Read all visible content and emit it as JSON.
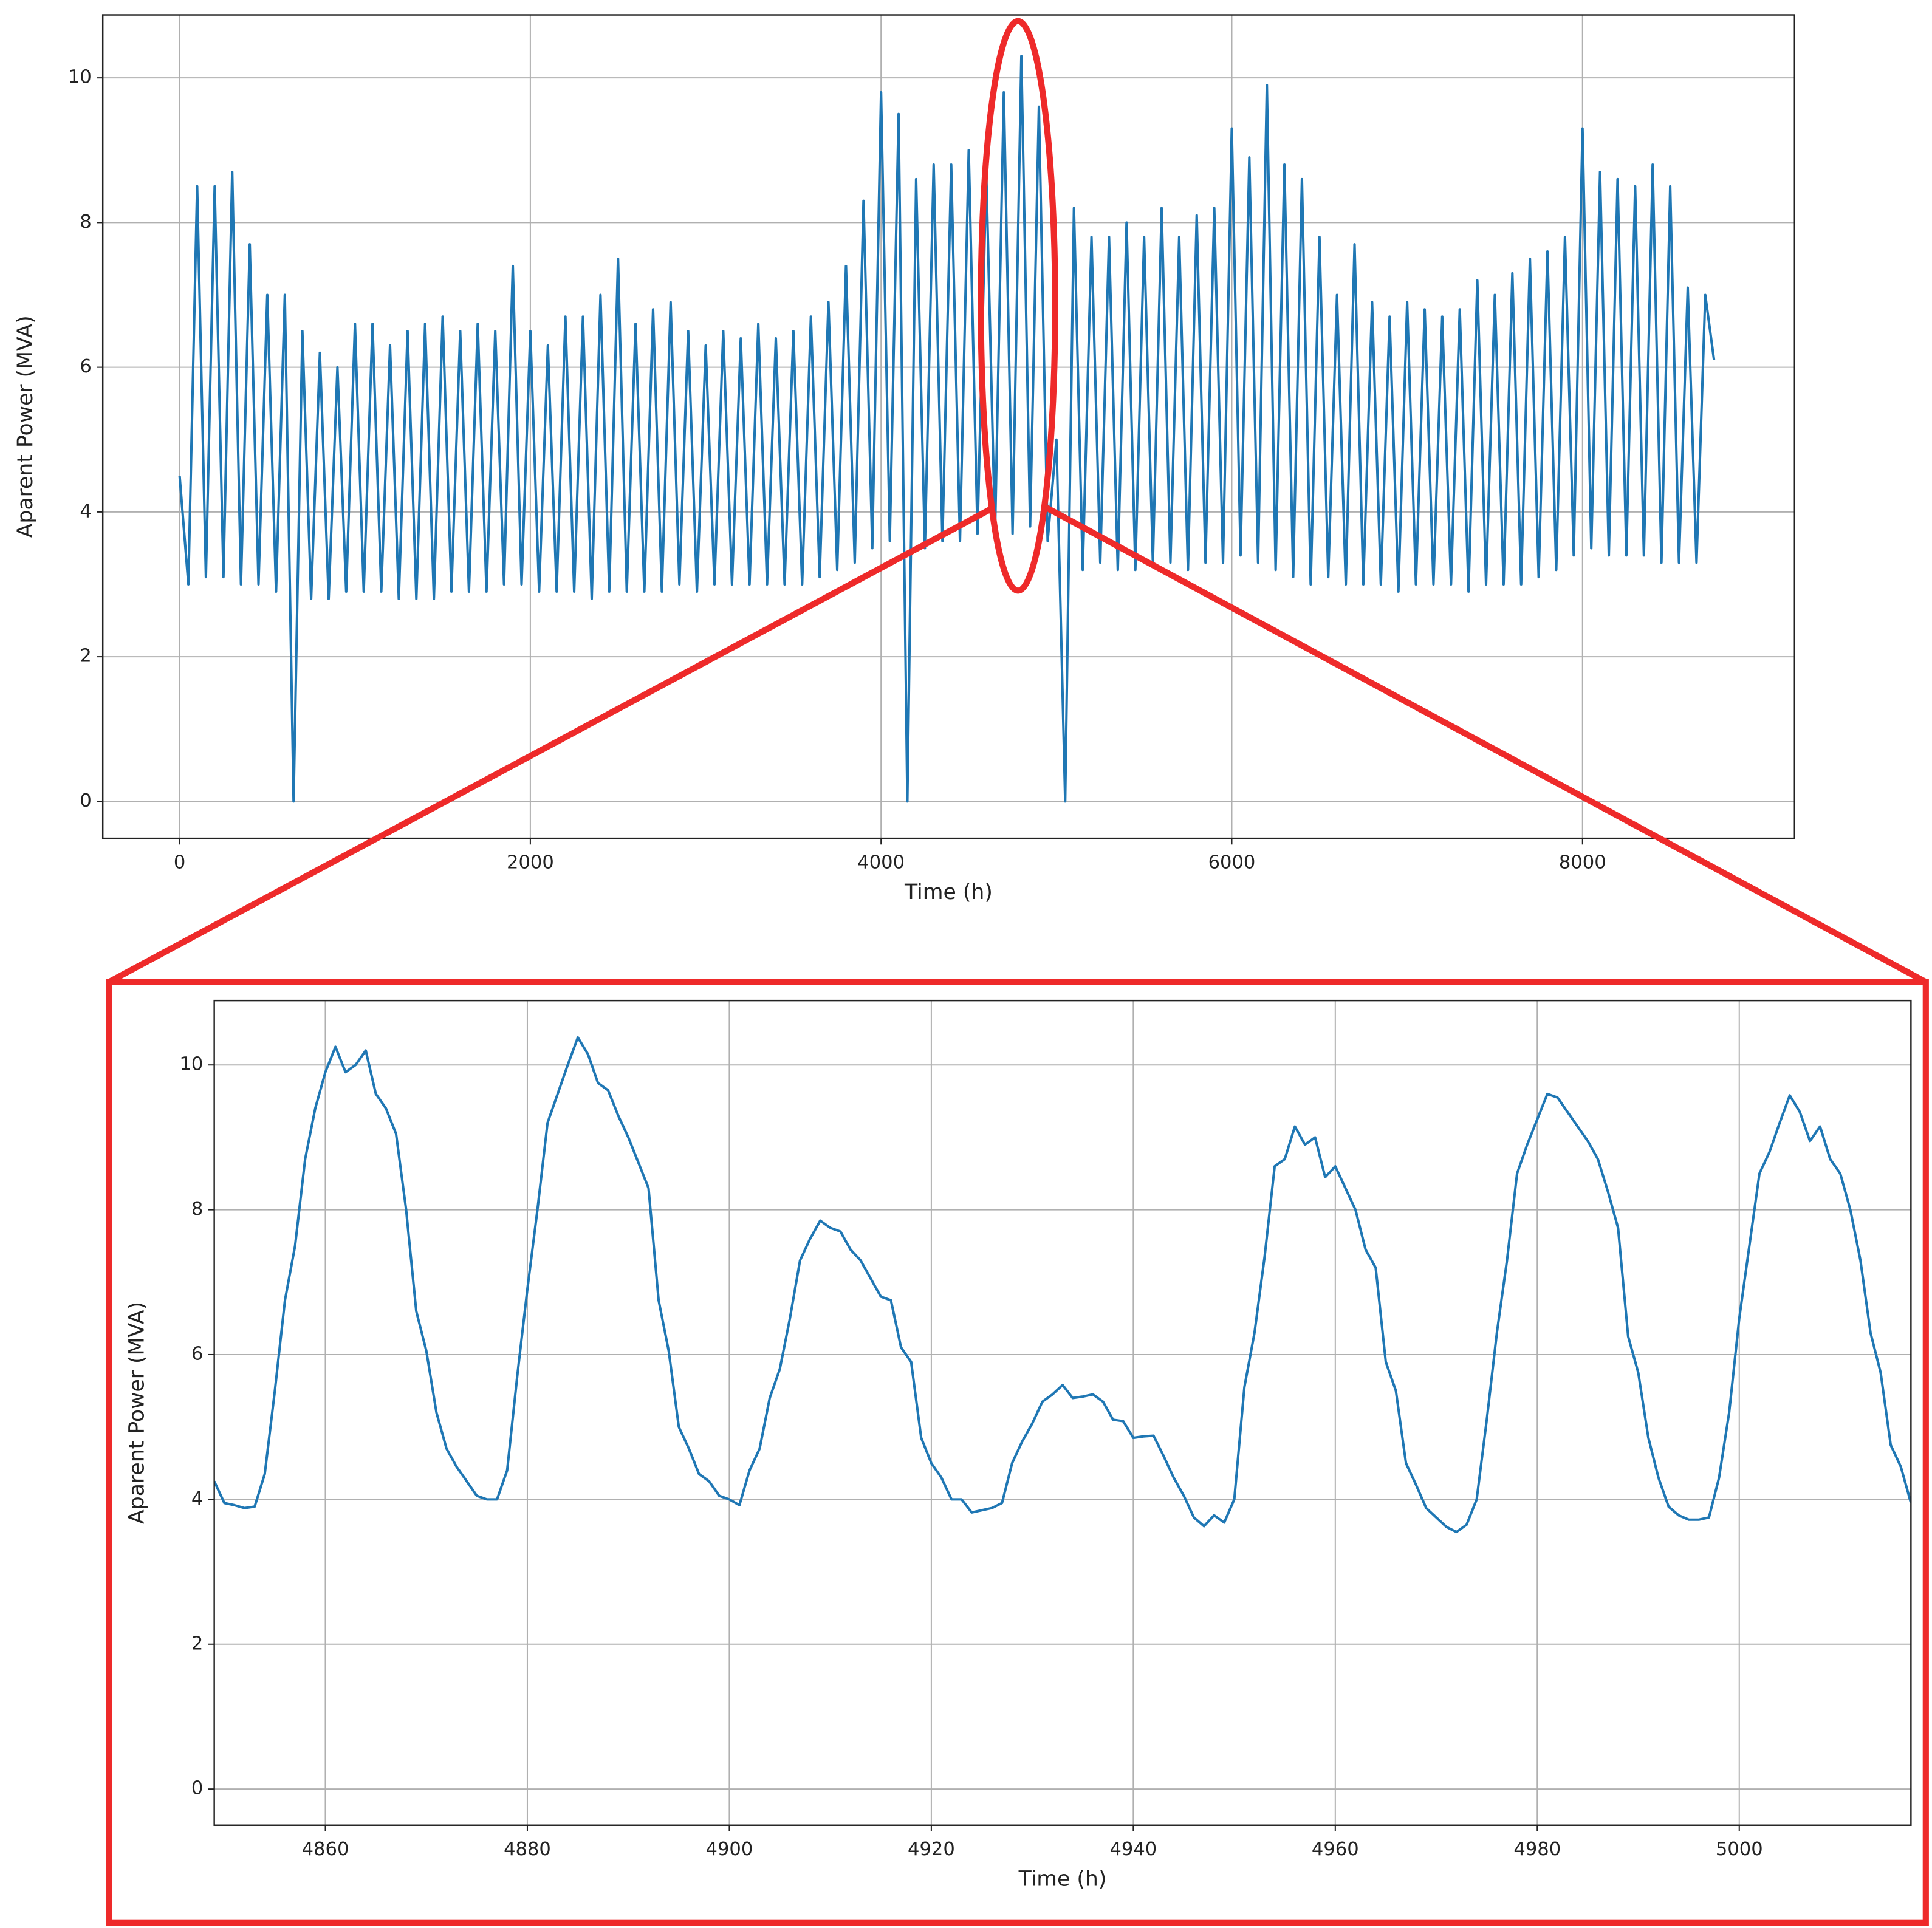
{
  "chart_data": [
    {
      "type": "line",
      "xlabel": "Time (h)",
      "ylabel": "Aparent Power (MVA)",
      "color": "#1f77b4",
      "xlim": [
        -438,
        9209
      ],
      "ylim": [
        -0.51,
        10.87
      ],
      "xticks": [
        0,
        2000,
        4000,
        6000,
        8000
      ],
      "yticks": [
        0,
        2,
        4,
        6,
        8,
        10
      ],
      "grid": true,
      "x": [
        0,
        50,
        100,
        150,
        200,
        250,
        300,
        350,
        400,
        450,
        500,
        550,
        600,
        650,
        700,
        750,
        800,
        850,
        900,
        950,
        1000,
        1050,
        1100,
        1150,
        1200,
        1250,
        1300,
        1350,
        1400,
        1450,
        1500,
        1550,
        1600,
        1650,
        1700,
        1750,
        1800,
        1850,
        1900,
        1950,
        2000,
        2050,
        2100,
        2150,
        2200,
        2250,
        2300,
        2350,
        2400,
        2450,
        2500,
        2550,
        2600,
        2650,
        2700,
        2750,
        2800,
        2850,
        2900,
        2950,
        3000,
        3050,
        3100,
        3150,
        3200,
        3250,
        3300,
        3350,
        3400,
        3450,
        3500,
        3550,
        3600,
        3650,
        3700,
        3750,
        3800,
        3850,
        3900,
        3950,
        4000,
        4050,
        4100,
        4150,
        4200,
        4250,
        4300,
        4350,
        4400,
        4450,
        4500,
        4550,
        4600,
        4650,
        4700,
        4750,
        4800,
        4850,
        4900,
        4950,
        5000,
        5050,
        5100,
        5150,
        5200,
        5250,
        5300,
        5350,
        5400,
        5450,
        5500,
        5550,
        5600,
        5650,
        5700,
        5750,
        5800,
        5850,
        5900,
        5950,
        6000,
        6050,
        6100,
        6150,
        6200,
        6250,
        6300,
        6350,
        6400,
        6450,
        6500,
        6550,
        6600,
        6650,
        6700,
        6750,
        6800,
        6850,
        6900,
        6950,
        7000,
        7050,
        7100,
        7150,
        7200,
        7250,
        7300,
        7350,
        7400,
        7450,
        7500,
        7550,
        7600,
        7650,
        7700,
        7750,
        7800,
        7850,
        7900,
        7950,
        8000,
        8050,
        8100,
        8150,
        8200,
        8250,
        8300,
        8350,
        8400,
        8450,
        8500,
        8550,
        8600,
        8650,
        8700,
        8750
      ],
      "values": [
        4.5,
        3.0,
        8.5,
        3.1,
        8.5,
        3.1,
        8.7,
        3.0,
        7.7,
        3.0,
        7.0,
        2.9,
        7.0,
        0,
        6.5,
        2.8,
        6.2,
        2.8,
        6.0,
        2.9,
        6.6,
        2.9,
        6.6,
        2.9,
        6.3,
        2.8,
        6.5,
        2.8,
        6.6,
        2.8,
        6.7,
        2.9,
        6.5,
        2.9,
        6.6,
        2.9,
        6.5,
        3.0,
        7.4,
        3.0,
        6.5,
        2.9,
        6.3,
        2.9,
        6.7,
        2.9,
        6.7,
        2.8,
        7.0,
        2.9,
        7.5,
        2.9,
        6.6,
        2.9,
        6.8,
        2.9,
        6.9,
        3.0,
        6.5,
        2.9,
        6.3,
        3.0,
        6.5,
        3.0,
        6.4,
        3.0,
        6.6,
        3.0,
        6.4,
        3.0,
        6.5,
        3.0,
        6.7,
        3.1,
        6.9,
        3.2,
        7.4,
        3.3,
        8.3,
        3.5,
        9.8,
        3.6,
        9.5,
        0,
        8.6,
        3.5,
        8.8,
        3.6,
        8.8,
        3.6,
        9.0,
        3.7,
        8.7,
        3.7,
        9.8,
        3.7,
        10.3,
        3.8,
        9.6,
        3.6,
        5.0,
        0,
        8.2,
        3.2,
        7.8,
        3.3,
        7.8,
        3.2,
        8.0,
        3.2,
        7.8,
        3.3,
        8.2,
        3.3,
        7.8,
        3.2,
        8.1,
        3.3,
        8.2,
        3.3,
        9.3,
        3.4,
        8.9,
        3.3,
        9.9,
        3.2,
        8.8,
        3.1,
        8.6,
        3.0,
        7.8,
        3.1,
        7.0,
        3.0,
        7.7,
        3.0,
        6.9,
        3.0,
        6.7,
        2.9,
        6.9,
        3.0,
        6.8,
        3.0,
        6.7,
        3.0,
        6.8,
        2.9,
        7.2,
        3.0,
        7.0,
        3.0,
        7.3,
        3.0,
        7.5,
        3.1,
        7.6,
        3.2,
        7.8,
        3.4,
        9.3,
        3.5,
        8.7,
        3.4,
        8.6,
        3.4,
        8.5,
        3.4,
        8.8,
        3.3,
        8.5,
        3.3,
        7.1,
        3.3,
        7.0,
        6.1
      ]
    },
    {
      "type": "line",
      "xlabel": "Time (h)",
      "ylabel": "Aparent Power (MVA)",
      "color": "#1f77b4",
      "xlim": [
        4849,
        5017
      ],
      "ylim": [
        -0.5,
        10.89
      ],
      "xticks": [
        4860,
        4880,
        4900,
        4920,
        4940,
        4960,
        4980,
        5000
      ],
      "yticks": [
        0,
        2,
        4,
        6,
        8,
        10
      ],
      "grid": true,
      "x": [
        4849,
        4850,
        4851,
        4852,
        4853,
        4854,
        4855,
        4856,
        4857,
        4858,
        4859,
        4860,
        4861,
        4862,
        4863,
        4864,
        4865,
        4866,
        4867,
        4868,
        4869,
        4870,
        4871,
        4872,
        4873,
        4874,
        4875,
        4876,
        4877,
        4878,
        4879,
        4880,
        4881,
        4882,
        4883,
        4884,
        4885,
        4886,
        4887,
        4888,
        4889,
        4890,
        4891,
        4892,
        4893,
        4894,
        4895,
        4896,
        4897,
        4898,
        4899,
        4900,
        4901,
        4902,
        4903,
        4904,
        4905,
        4906,
        4907,
        4908,
        4909,
        4910,
        4911,
        4912,
        4913,
        4914,
        4915,
        4916,
        4917,
        4918,
        4919,
        4920,
        4921,
        4922,
        4923,
        4924,
        4925,
        4926,
        4927,
        4928,
        4929,
        4930,
        4931,
        4932,
        4933,
        4934,
        4935,
        4936,
        4937,
        4938,
        4939,
        4940,
        4941,
        4942,
        4943,
        4944,
        4945,
        4946,
        4947,
        4948,
        4949,
        4950,
        4951,
        4952,
        4953,
        4954,
        4955,
        4956,
        4957,
        4958,
        4959,
        4960,
        4961,
        4962,
        4963,
        4964,
        4965,
        4966,
        4967,
        4968,
        4969,
        4970,
        4971,
        4972,
        4973,
        4974,
        4975,
        4976,
        4977,
        4978,
        4979,
        4980,
        4981,
        4982,
        4983,
        4984,
        4985,
        4986,
        4987,
        4988,
        4989,
        4990,
        4991,
        4992,
        4993,
        4994,
        4995,
        4996,
        4997,
        4998,
        4999,
        5000,
        5001,
        5002,
        5003,
        5004,
        5005,
        5006,
        5007,
        5008,
        5009,
        5010,
        5011,
        5012,
        5013,
        5014,
        5015,
        5016,
        5017
      ],
      "values": [
        4.25,
        3.95,
        3.92,
        3.88,
        3.9,
        4.35,
        5.5,
        6.75,
        7.5,
        8.7,
        9.4,
        9.9,
        10.25,
        9.9,
        10.0,
        10.2,
        9.6,
        9.4,
        9.05,
        8.0,
        6.6,
        6.05,
        5.2,
        4.7,
        4.45,
        4.25,
        4.05,
        4.0,
        4.0,
        4.4,
        5.7,
        6.9,
        8.0,
        9.2,
        9.6,
        10.0,
        10.38,
        10.15,
        9.75,
        9.65,
        9.3,
        9.0,
        8.65,
        8.3,
        6.75,
        6.05,
        5.0,
        4.7,
        4.35,
        4.25,
        4.05,
        4.0,
        3.92,
        4.4,
        4.7,
        5.4,
        5.8,
        6.5,
        7.3,
        7.6,
        7.85,
        7.75,
        7.7,
        7.45,
        7.3,
        7.05,
        6.8,
        6.75,
        6.1,
        5.9,
        4.85,
        4.5,
        4.3,
        4.0,
        4.0,
        3.82,
        3.85,
        3.88,
        3.95,
        4.5,
        4.8,
        5.05,
        5.35,
        5.45,
        5.58,
        5.4,
        5.42,
        5.45,
        5.35,
        5.1,
        5.08,
        4.85,
        4.87,
        4.88,
        4.6,
        4.3,
        4.05,
        3.75,
        3.63,
        3.78,
        3.68,
        4.0,
        5.55,
        6.3,
        7.35,
        8.6,
        8.7,
        9.15,
        8.9,
        9.0,
        8.45,
        8.6,
        8.3,
        8.0,
        7.45,
        7.2,
        5.9,
        5.5,
        4.5,
        4.2,
        3.88,
        3.75,
        3.62,
        3.55,
        3.65,
        4.0,
        5.1,
        6.3,
        7.3,
        8.5,
        8.9,
        9.25,
        9.6,
        9.55,
        9.35,
        9.15,
        8.95,
        8.7,
        8.25,
        7.75,
        6.25,
        5.75,
        4.85,
        4.3,
        3.9,
        3.78,
        3.72,
        3.72,
        3.75,
        4.3,
        5.2,
        6.5,
        7.5,
        8.5,
        8.8,
        9.2,
        9.58,
        9.35,
        8.95,
        9.15,
        8.7,
        8.5,
        8.0,
        7.3,
        6.3,
        5.75,
        4.75,
        4.45,
        3.95
      ]
    }
  ]
}
